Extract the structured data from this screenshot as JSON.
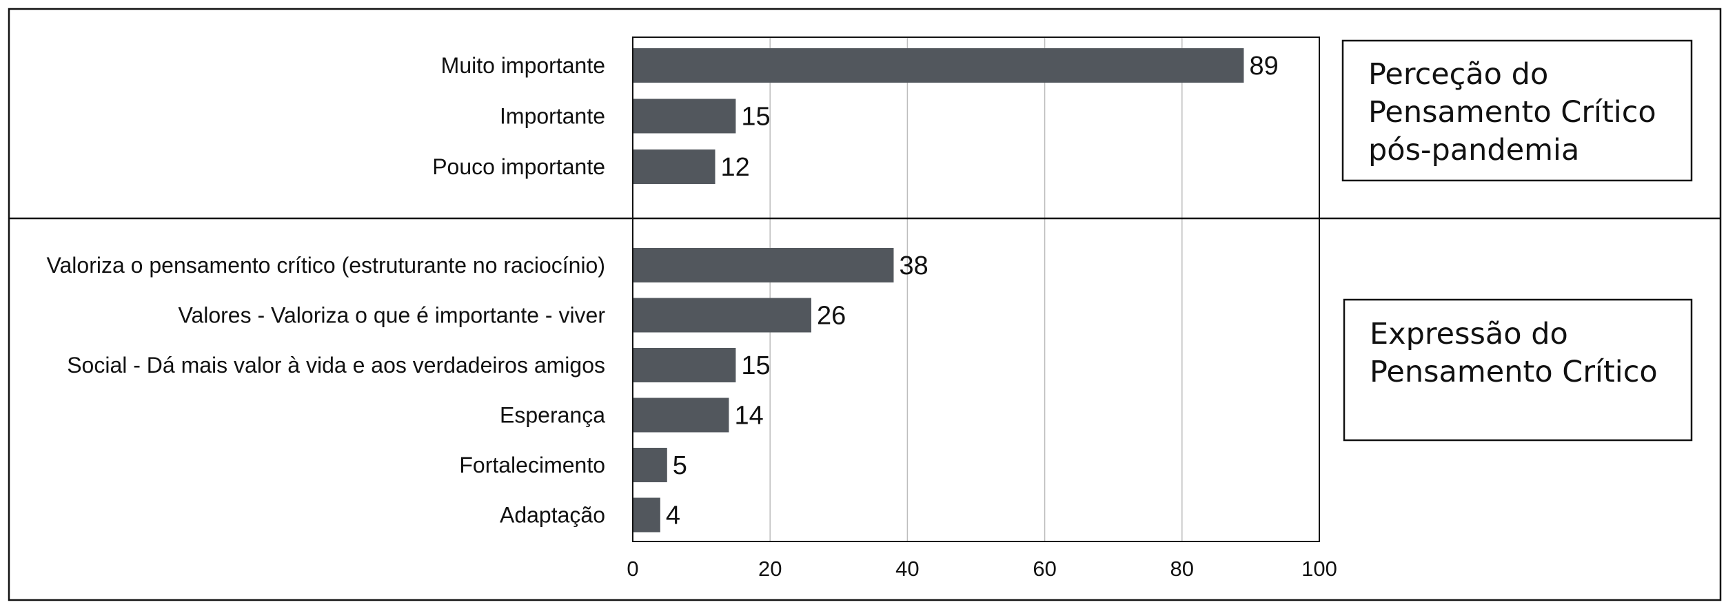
{
  "chart_data": {
    "type": "bar",
    "orientation": "horizontal",
    "xlim": [
      0,
      100
    ],
    "xticks": [
      "0",
      "20",
      "40",
      "60",
      "80",
      "100"
    ],
    "grid": true,
    "bar_color": "#52575d",
    "panels": [
      {
        "title_lines": [
          "Perceção do",
          "Pensamento Crítico",
          "pós-pandemia"
        ],
        "categories": [
          "Muito importante",
          "Importante",
          "Pouco importante"
        ],
        "values": [
          89,
          15,
          12
        ]
      },
      {
        "title_lines": [
          "Expressão do",
          "Pensamento Crítico"
        ],
        "categories": [
          "Valoriza o pensamento crítico (estruturante no raciocínio)",
          "Valores - Valoriza o que é importante - viver",
          "Social - Dá mais valor à vida e aos verdadeiros amigos",
          "Esperança",
          "Fortalecimento",
          "Adaptação"
        ],
        "values": [
          38,
          26,
          15,
          14,
          5,
          4
        ]
      }
    ]
  }
}
